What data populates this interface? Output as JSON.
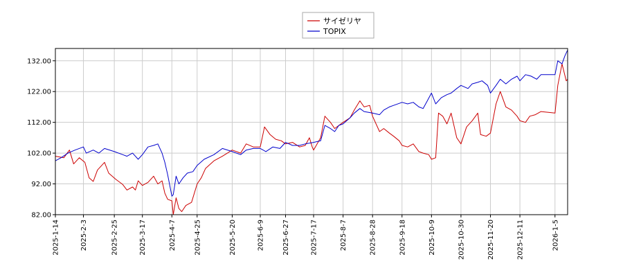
{
  "chart_data": {
    "type": "line",
    "title": "",
    "xlabel": "",
    "ylabel": "",
    "ylim": [
      82,
      136
    ],
    "y_ticks": [
      "82.00",
      "92.00",
      "102.00",
      "112.00",
      "122.00",
      "132.00"
    ],
    "x_ticks": [
      "2025-1-14",
      "2025-2-3",
      "2025-2-25",
      "2025-3-17",
      "2025-4-7",
      "2025-4-25",
      "2025-5-20",
      "2025-6-9",
      "2025-6-27",
      "2025-7-17",
      "2025-8-7",
      "2025-8-28",
      "2025-9-18",
      "2025-10-9",
      "2025-10-30",
      "2025-11-20",
      "2025-12-11",
      "2026-1-5"
    ],
    "x_end": "2026-1-14",
    "grid": true,
    "legend_position": "top-center",
    "series": [
      {
        "name": "サイゼリヤ",
        "color": "#cc0000",
        "points": [
          [
            "2025-1-14",
            101.0
          ],
          [
            "2025-1-20",
            100.5
          ],
          [
            "2025-1-24",
            103.0
          ],
          [
            "2025-1-27",
            98.5
          ],
          [
            "2025-1-31",
            100.5
          ],
          [
            "2025-2-4",
            99.0
          ],
          [
            "2025-2-7",
            94.0
          ],
          [
            "2025-2-10",
            92.8
          ],
          [
            "2025-2-13",
            96.5
          ],
          [
            "2025-2-18",
            99.0
          ],
          [
            "2025-2-21",
            95.5
          ],
          [
            "2025-2-26",
            93.5
          ],
          [
            "2025-3-3",
            91.8
          ],
          [
            "2025-3-6",
            90.0
          ],
          [
            "2025-3-10",
            91.0
          ],
          [
            "2025-3-12",
            90.0
          ],
          [
            "2025-3-14",
            93.0
          ],
          [
            "2025-3-17",
            91.5
          ],
          [
            "2025-3-21",
            92.5
          ],
          [
            "2025-3-25",
            94.5
          ],
          [
            "2025-3-28",
            92.0
          ],
          [
            "2025-3-31",
            93.0
          ],
          [
            "2025-4-2",
            89.0
          ],
          [
            "2025-4-4",
            87.0
          ],
          [
            "2025-4-7",
            86.5
          ],
          [
            "2025-4-8",
            82.0
          ],
          [
            "2025-4-10",
            87.5
          ],
          [
            "2025-4-12",
            84.0
          ],
          [
            "2025-4-14",
            83.0
          ],
          [
            "2025-4-17",
            85.0
          ],
          [
            "2025-4-21",
            86.0
          ],
          [
            "2025-4-25",
            92.0
          ],
          [
            "2025-4-28",
            94.0
          ],
          [
            "2025-5-1",
            97.0
          ],
          [
            "2025-5-7",
            99.5
          ],
          [
            "2025-5-13",
            101.0
          ],
          [
            "2025-5-20",
            103.0
          ],
          [
            "2025-5-26",
            102.0
          ],
          [
            "2025-5-30",
            105.0
          ],
          [
            "2025-6-4",
            104.0
          ],
          [
            "2025-6-9",
            104.0
          ],
          [
            "2025-6-12",
            110.5
          ],
          [
            "2025-6-16",
            108.0
          ],
          [
            "2025-6-20",
            106.5
          ],
          [
            "2025-6-24",
            106.0
          ],
          [
            "2025-6-27",
            105.0
          ],
          [
            "2025-7-2",
            105.5
          ],
          [
            "2025-7-7",
            104.0
          ],
          [
            "2025-7-11",
            104.5
          ],
          [
            "2025-7-14",
            107.0
          ],
          [
            "2025-7-16",
            104.0
          ],
          [
            "2025-7-17",
            103.0
          ],
          [
            "2025-7-22",
            107.0
          ],
          [
            "2025-7-25",
            114.0
          ],
          [
            "2025-7-29",
            112.0
          ],
          [
            "2025-8-1",
            110.0
          ],
          [
            "2025-8-4",
            111.0
          ],
          [
            "2025-8-7",
            112.0
          ],
          [
            "2025-8-12",
            113.5
          ],
          [
            "2025-8-15",
            116.0
          ],
          [
            "2025-8-19",
            119.0
          ],
          [
            "2025-8-22",
            117.0
          ],
          [
            "2025-8-26",
            117.5
          ],
          [
            "2025-8-28",
            114.0
          ],
          [
            "2025-9-2",
            109.0
          ],
          [
            "2025-9-5",
            110.0
          ],
          [
            "2025-9-9",
            108.5
          ],
          [
            "2025-9-12",
            107.5
          ],
          [
            "2025-9-16",
            106.0
          ],
          [
            "2025-9-18",
            104.5
          ],
          [
            "2025-9-22",
            104.0
          ],
          [
            "2025-9-26",
            105.0
          ],
          [
            "2025-9-30",
            102.5
          ],
          [
            "2025-10-3",
            102.0
          ],
          [
            "2025-10-7",
            101.5
          ],
          [
            "2025-10-9",
            100.0
          ],
          [
            "2025-10-12",
            100.5
          ],
          [
            "2025-10-14",
            115.0
          ],
          [
            "2025-10-17",
            114.0
          ],
          [
            "2025-10-20",
            111.5
          ],
          [
            "2025-10-23",
            115.0
          ],
          [
            "2025-10-27",
            107.0
          ],
          [
            "2025-10-30",
            105.0
          ],
          [
            "2025-11-3",
            110.5
          ],
          [
            "2025-11-7",
            112.5
          ],
          [
            "2025-11-11",
            115.0
          ],
          [
            "2025-11-13",
            108.0
          ],
          [
            "2025-11-17",
            107.5
          ],
          [
            "2025-11-20",
            108.5
          ],
          [
            "2025-11-24",
            118.0
          ],
          [
            "2025-11-27",
            122.0
          ],
          [
            "2025-12-1",
            117.0
          ],
          [
            "2025-12-5",
            116.0
          ],
          [
            "2025-12-9",
            114.0
          ],
          [
            "2025-12-11",
            112.5
          ],
          [
            "2025-12-15",
            112.0
          ],
          [
            "2025-12-18",
            114.0
          ],
          [
            "2025-12-22",
            114.5
          ],
          [
            "2025-12-26",
            115.5
          ],
          [
            "2026-1-5",
            115.0
          ],
          [
            "2026-1-7",
            124.0
          ],
          [
            "2026-1-10",
            131.0
          ],
          [
            "2026-1-13",
            125.5
          ],
          [
            "2026-1-14",
            126.0
          ]
        ]
      },
      {
        "name": "TOPIX",
        "color": "#0000cc",
        "points": [
          [
            "2025-1-14",
            99.5
          ],
          [
            "2025-1-18",
            100.5
          ],
          [
            "2025-1-23",
            102.0
          ],
          [
            "2025-1-28",
            103.0
          ],
          [
            "2025-2-3",
            104.0
          ],
          [
            "2025-2-5",
            102.0
          ],
          [
            "2025-2-10",
            103.0
          ],
          [
            "2025-2-14",
            102.0
          ],
          [
            "2025-2-18",
            103.5
          ],
          [
            "2025-2-25",
            102.5
          ],
          [
            "2025-3-3",
            101.5
          ],
          [
            "2025-3-6",
            101.0
          ],
          [
            "2025-3-10",
            102.0
          ],
          [
            "2025-3-14",
            100.0
          ],
          [
            "2025-3-17",
            101.5
          ],
          [
            "2025-3-21",
            104.0
          ],
          [
            "2025-3-25",
            104.5
          ],
          [
            "2025-3-28",
            105.0
          ],
          [
            "2025-3-31",
            102.0
          ],
          [
            "2025-4-2",
            99.0
          ],
          [
            "2025-4-4",
            95.0
          ],
          [
            "2025-4-7",
            88.0
          ],
          [
            "2025-4-8",
            88.5
          ],
          [
            "2025-4-10",
            94.5
          ],
          [
            "2025-4-12",
            92.0
          ],
          [
            "2025-4-15",
            94.0
          ],
          [
            "2025-4-18",
            95.5
          ],
          [
            "2025-4-22",
            96.0
          ],
          [
            "2025-4-25",
            98.0
          ],
          [
            "2025-4-30",
            100.0
          ],
          [
            "2025-5-7",
            101.5
          ],
          [
            "2025-5-13",
            103.5
          ],
          [
            "2025-5-20",
            102.5
          ],
          [
            "2025-5-26",
            101.5
          ],
          [
            "2025-5-30",
            103.0
          ],
          [
            "2025-6-4",
            103.5
          ],
          [
            "2025-6-9",
            103.5
          ],
          [
            "2025-6-13",
            102.5
          ],
          [
            "2025-6-18",
            104.0
          ],
          [
            "2025-6-23",
            103.5
          ],
          [
            "2025-6-27",
            105.5
          ],
          [
            "2025-7-2",
            104.5
          ],
          [
            "2025-7-7",
            104.5
          ],
          [
            "2025-7-11",
            105.0
          ],
          [
            "2025-7-17",
            105.5
          ],
          [
            "2025-7-22",
            106.0
          ],
          [
            "2025-7-25",
            111.0
          ],
          [
            "2025-7-29",
            110.0
          ],
          [
            "2025-8-1",
            109.0
          ],
          [
            "2025-8-4",
            111.0
          ],
          [
            "2025-8-7",
            111.5
          ],
          [
            "2025-8-12",
            113.5
          ],
          [
            "2025-8-15",
            115.0
          ],
          [
            "2025-8-19",
            116.5
          ],
          [
            "2025-8-22",
            115.5
          ],
          [
            "2025-8-28",
            115.0
          ],
          [
            "2025-9-2",
            114.5
          ],
          [
            "2025-9-5",
            116.0
          ],
          [
            "2025-9-9",
            117.0
          ],
          [
            "2025-9-12",
            117.5
          ],
          [
            "2025-9-18",
            118.5
          ],
          [
            "2025-9-22",
            118.0
          ],
          [
            "2025-9-26",
            118.5
          ],
          [
            "2025-9-30",
            117.0
          ],
          [
            "2025-10-3",
            116.5
          ],
          [
            "2025-10-6",
            119.0
          ],
          [
            "2025-10-9",
            121.5
          ],
          [
            "2025-10-12",
            118.0
          ],
          [
            "2025-10-16",
            120.0
          ],
          [
            "2025-10-20",
            121.0
          ],
          [
            "2025-10-23",
            121.5
          ],
          [
            "2025-10-27",
            123.0
          ],
          [
            "2025-10-30",
            124.0
          ],
          [
            "2025-11-4",
            123.0
          ],
          [
            "2025-11-7",
            124.5
          ],
          [
            "2025-11-11",
            125.0
          ],
          [
            "2025-11-14",
            125.5
          ],
          [
            "2025-11-18",
            124.0
          ],
          [
            "2025-11-20",
            121.5
          ],
          [
            "2025-11-24",
            124.0
          ],
          [
            "2025-11-27",
            126.0
          ],
          [
            "2025-12-1",
            124.5
          ],
          [
            "2025-12-5",
            126.0
          ],
          [
            "2025-12-9",
            127.0
          ],
          [
            "2025-12-11",
            125.5
          ],
          [
            "2025-12-15",
            127.5
          ],
          [
            "2025-12-19",
            127.0
          ],
          [
            "2025-12-23",
            126.0
          ],
          [
            "2025-12-26",
            127.5
          ],
          [
            "2026-1-5",
            127.5
          ],
          [
            "2026-1-7",
            132.0
          ],
          [
            "2026-1-10",
            131.0
          ],
          [
            "2026-1-12",
            133.5
          ],
          [
            "2026-1-14",
            135.5
          ]
        ]
      }
    ]
  }
}
